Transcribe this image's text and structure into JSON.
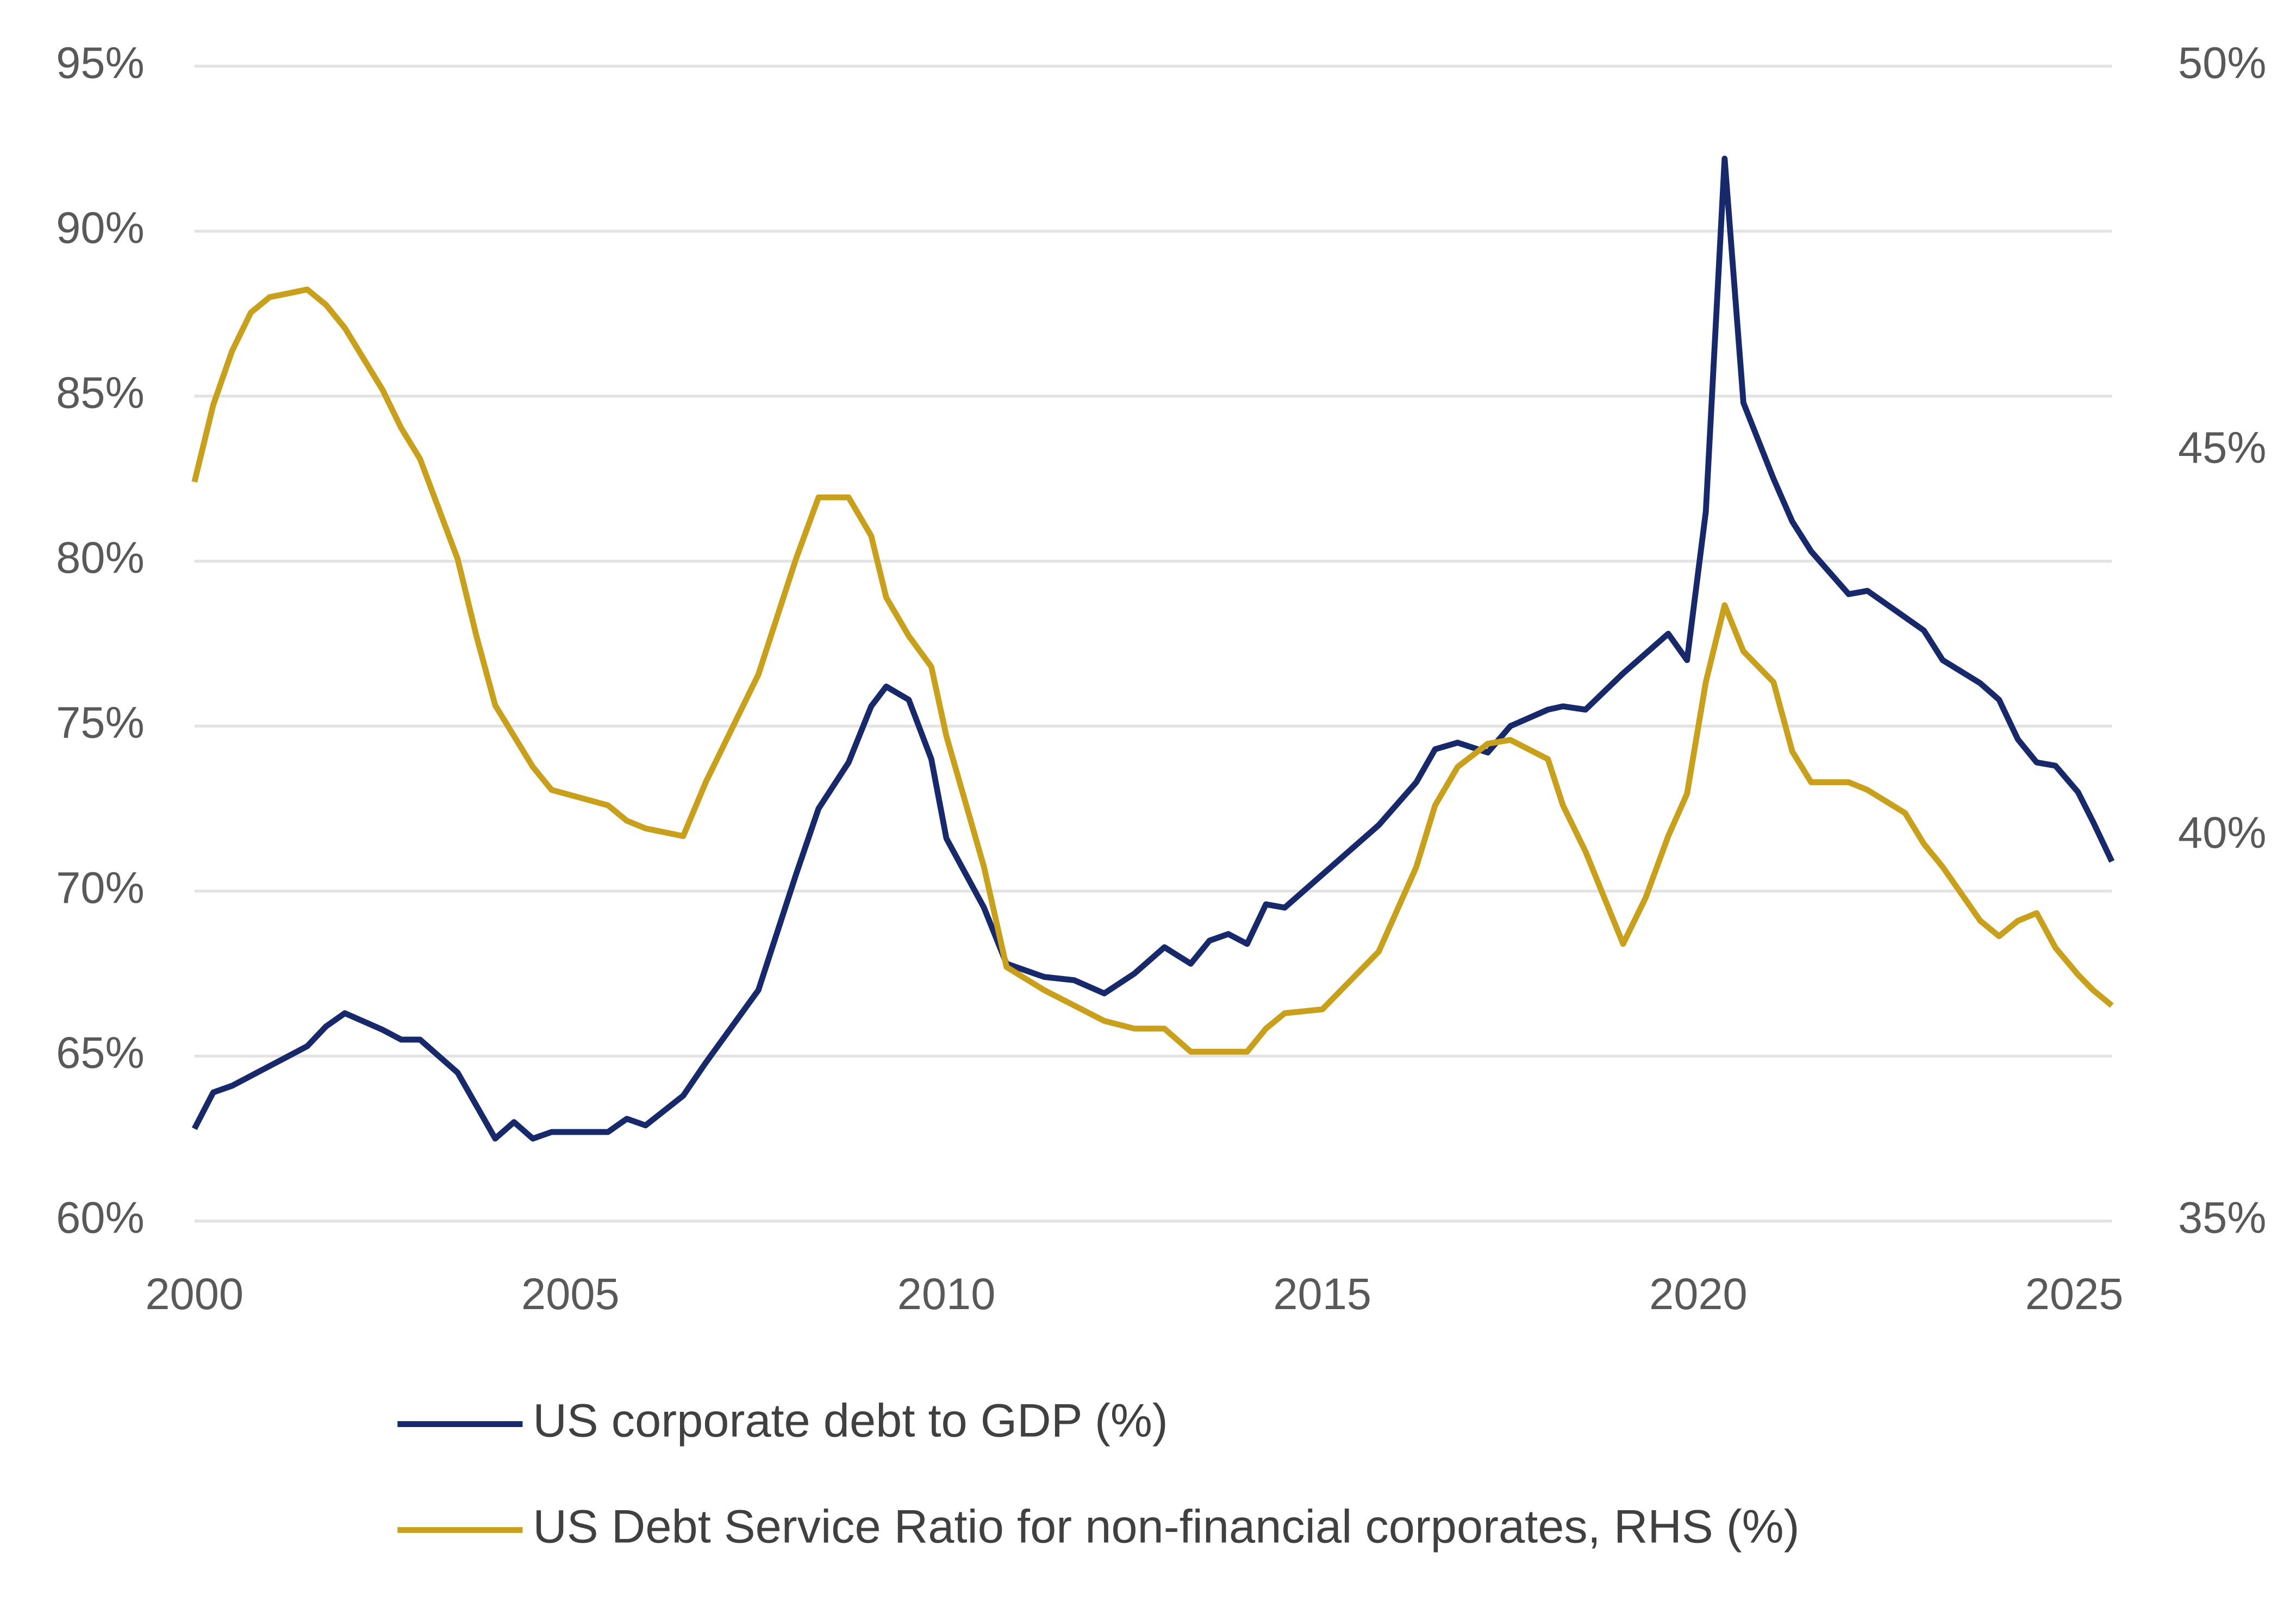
{
  "chart_data": {
    "type": "line",
    "x": [
      2000,
      2000.25,
      2000.5,
      2000.75,
      2001,
      2001.5,
      2001.75,
      2002,
      2002.5,
      2002.75,
      2003,
      2003.5,
      2003.75,
      2004,
      2004.25,
      2004.5,
      2004.75,
      2005.5,
      2005.75,
      2006,
      2006.5,
      2006.8,
      2007.5,
      2008,
      2008.3,
      2008.7,
      2009,
      2009.2,
      2009.5,
      2009.8,
      2010,
      2010.5,
      2010.8,
      2011.3,
      2011.7,
      2012.1,
      2012.5,
      2012.9,
      2013.25,
      2013.5,
      2013.75,
      2014,
      2014.25,
      2014.5,
      2015,
      2015.25,
      2015.75,
      2016.25,
      2016.5,
      2016.8,
      2017.2,
      2017.5,
      2018,
      2018.2,
      2018.5,
      2019,
      2019.3,
      2019.6,
      2019.85,
      2020.1,
      2020.35,
      2020.6,
      2021,
      2021.25,
      2021.5,
      2022,
      2022.25,
      2022.75,
      2023,
      2023.25,
      2023.75,
      2024,
      2024.25,
      2024.5,
      2024.75,
      2025.05,
      2025.25,
      2025.5
    ],
    "series": [
      {
        "name": "US corporate debt to GDP (%)",
        "color": "#17296b",
        "values": [
          62.8,
          63.9,
          64.1,
          64.4,
          64.7,
          65.3,
          65.9,
          66.3,
          65.8,
          65.5,
          65.5,
          64.5,
          63.5,
          62.5,
          63.0,
          62.5,
          62.7,
          62.7,
          63.1,
          62.9,
          63.8,
          64.8,
          67.0,
          70.5,
          72.5,
          73.9,
          75.6,
          76.2,
          75.8,
          74.0,
          71.6,
          69.5,
          67.8,
          67.4,
          67.3,
          66.9,
          67.5,
          68.3,
          67.8,
          68.5,
          68.7,
          68.4,
          69.6,
          69.5,
          70.5,
          71.0,
          72.0,
          73.3,
          74.3,
          74.5,
          74.2,
          75.0,
          75.5,
          75.6,
          75.5,
          76.6,
          77.2,
          77.8,
          77.0,
          81.5,
          92.2,
          84.8,
          82.5,
          81.2,
          80.3,
          79.0,
          79.1,
          78.3,
          77.9,
          77.0,
          76.3,
          75.8,
          74.6,
          73.9,
          73.8,
          73.0,
          72.1,
          70.9
        ]
      },
      {
        "name": "US Debt Service Ratio for non-financial corporates, RHS (%)",
        "color": "#c9a01b",
        "axis": "y2",
        "values": [
          44.6,
          45.6,
          46.3,
          46.8,
          47.0,
          47.1,
          46.9,
          46.6,
          45.8,
          45.3,
          44.9,
          43.6,
          42.6,
          41.7,
          41.3,
          40.9,
          40.6,
          40.4,
          40.2,
          40.1,
          40.0,
          40.7,
          42.1,
          43.6,
          44.4,
          44.4,
          43.9,
          43.1,
          42.6,
          42.2,
          41.3,
          39.6,
          38.3,
          38.0,
          37.8,
          37.6,
          37.5,
          37.5,
          37.2,
          37.2,
          37.2,
          37.2,
          37.5,
          37.7,
          37.75,
          38.0,
          38.5,
          39.6,
          40.4,
          40.9,
          41.2,
          41.25,
          41.0,
          40.4,
          39.8,
          38.6,
          39.2,
          40.0,
          40.55,
          42.0,
          43.0,
          42.4,
          42.0,
          41.1,
          40.7,
          40.7,
          40.6,
          40.3,
          39.9,
          39.6,
          38.9,
          38.7,
          38.9,
          39.0,
          38.55,
          38.2,
          38.0,
          37.8
        ]
      }
    ],
    "xlim": [
      2000,
      2025.5
    ],
    "xticks": [
      2000,
      2005,
      2010,
      2015,
      2020,
      2025
    ],
    "ylim": [
      60,
      95
    ],
    "yticks": [
      {
        "value": 60,
        "label": "60%"
      },
      {
        "value": 65,
        "label": "65%"
      },
      {
        "value": 70,
        "label": "70%"
      },
      {
        "value": 75,
        "label": "75%"
      },
      {
        "value": 80,
        "label": "80%"
      },
      {
        "value": 85,
        "label": "85%"
      },
      {
        "value": 90,
        "label": "90%"
      },
      {
        "value": 95,
        "label": "95%"
      }
    ],
    "y2lim": [
      35,
      50
    ],
    "y2ticks": [
      {
        "value": 35,
        "label": "35%"
      },
      {
        "value": 40,
        "label": "40%"
      },
      {
        "value": 45,
        "label": "45%"
      },
      {
        "value": 50,
        "label": "50%"
      }
    ],
    "grid": true,
    "legend": "bottom"
  }
}
